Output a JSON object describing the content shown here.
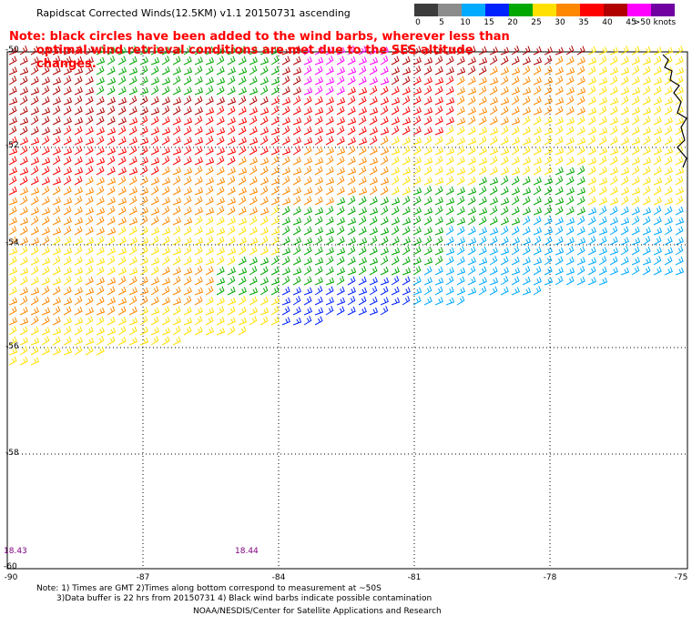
{
  "title": "Rapidscat Corrected Winds(12.5KM) v1.1 20150731 ascending",
  "notice_line1": "Note: black circles have been added to the wind barbs, wherever less than",
  "notice_line2": "optimal wind retrieval conditions are met due to the SES altitude changes.",
  "legend": {
    "labels": [
      "0",
      "5",
      "10",
      "15",
      "20",
      "25",
      "30",
      "35",
      "40",
      "45",
      ">50 knots"
    ],
    "colors": [
      "#3c3c3c",
      "#8c8c8c",
      "#00aaff",
      "#0022ff",
      "#00a800",
      "#ffe000",
      "#ff8800",
      "#ff0000",
      "#b00000",
      "#ff00ff",
      "#7000a0"
    ]
  },
  "axes": {
    "lat_labels": [
      "-50",
      "-52",
      "-54",
      "-56",
      "-58",
      "-60"
    ],
    "lon_labels": [
      "-90",
      "-87",
      "-84",
      "-81",
      "-78",
      "-75"
    ]
  },
  "times": [
    "18.43",
    "18.44"
  ],
  "footnote_line1": "Note: 1) Times are GMT 2)Times along bottom correspond to measurement at ~50S",
  "footnote_line2": "3)Data buffer is 22 hrs from 20150731 4) Black wind barbs indicate possible contamination",
  "credit": "NOAA/NESDIS/Center for Satellite Applications and Research"
}
